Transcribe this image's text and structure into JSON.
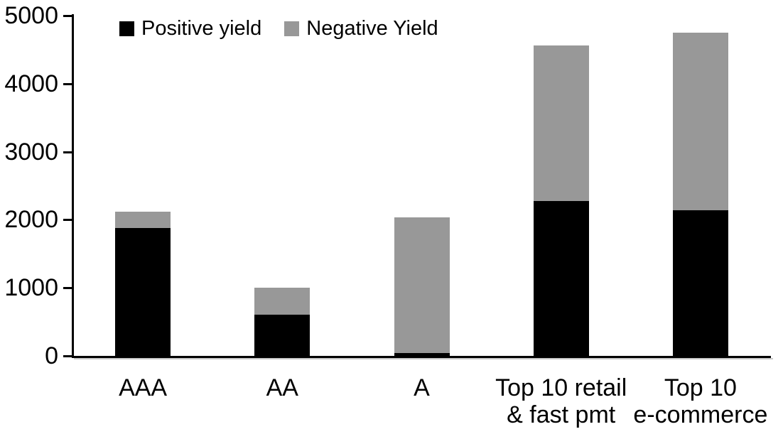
{
  "chart_data": {
    "type": "bar",
    "stacked": true,
    "title": "",
    "xlabel": "",
    "ylabel": "",
    "categories": [
      "AAA",
      "AA",
      "A",
      "Top 10 retail & fast pmt",
      "Top 10 e-commerce"
    ],
    "category_lines": [
      [
        "AAA"
      ],
      [
        "AA"
      ],
      [
        "A"
      ],
      [
        "Top 10 retail",
        "& fast pmt"
      ],
      [
        "Top 10",
        "e-commerce"
      ]
    ],
    "series": [
      {
        "name": "Positive yield",
        "color": "#000000",
        "values": [
          1880,
          610,
          40,
          2280,
          2140
        ]
      },
      {
        "name": "Negative Yield",
        "color": "#989898",
        "values": [
          240,
          390,
          2000,
          2280,
          2610
        ]
      }
    ],
    "totals": [
      2120,
      1000,
      2040,
      4560,
      4750
    ],
    "ylim": [
      0,
      5000
    ],
    "yticks": [
      0,
      1000,
      2000,
      3000,
      4000,
      5000
    ],
    "legend_position": "top",
    "grid": false,
    "colors": {
      "positive": "#000000",
      "negative": "#989898",
      "axis": "#000000",
      "background": "#ffffff"
    }
  }
}
